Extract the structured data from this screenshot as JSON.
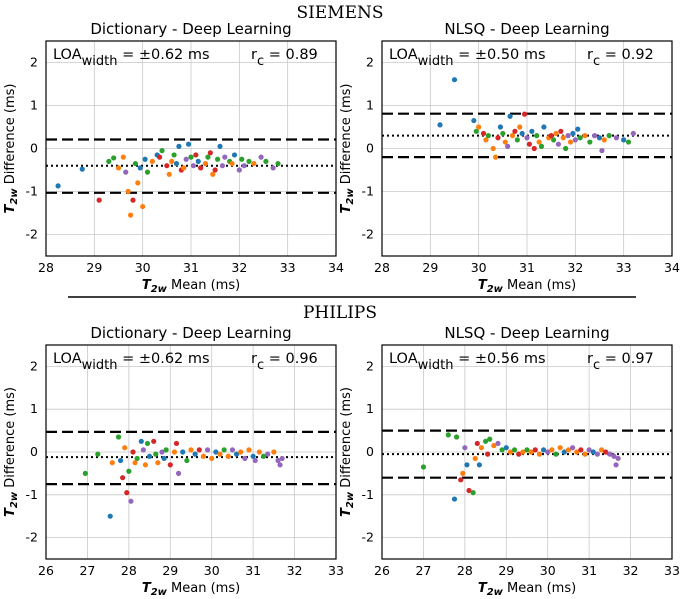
{
  "vendors": [
    "SIEMENS",
    "PHILIPS"
  ],
  "colors": {
    "palette": [
      "#1f77b4",
      "#ff7f0e",
      "#2ca02c",
      "#d62728",
      "#9467bd"
    ],
    "grid": "#c8c8c8",
    "line": "#000000"
  },
  "chart_data": [
    {
      "type": "scatter",
      "title": "Dictionary - Deep Learning",
      "xlabel": "T2w Mean (ms)",
      "ylabel": "T2w Difference (ms)",
      "xlim": [
        28,
        34
      ],
      "ylim": [
        -2.5,
        2.5
      ],
      "xticks": [
        28,
        29,
        30,
        31,
        32,
        33,
        34
      ],
      "yticks": [
        -2,
        -1,
        0,
        1,
        2
      ],
      "grid": true,
      "bias": -0.4,
      "loa_upper": 0.21,
      "loa_lower": -1.03,
      "annotation": {
        "loa_prefix": "LOA",
        "loa_sub": "width",
        "loa_value": " = ±0.62 ms",
        "rc_prefix": "r",
        "rc_sub": "c",
        "rc_value": " = 0.89"
      },
      "points": [
        [
          28.25,
          -0.87,
          0
        ],
        [
          28.75,
          -0.48,
          0
        ],
        [
          29.1,
          -1.2,
          3
        ],
        [
          29.3,
          -0.3,
          2
        ],
        [
          29.4,
          -0.22,
          2
        ],
        [
          29.5,
          -0.45,
          1
        ],
        [
          29.6,
          -0.2,
          1
        ],
        [
          29.65,
          -0.55,
          4
        ],
        [
          29.7,
          -1.0,
          1
        ],
        [
          29.75,
          -1.55,
          1
        ],
        [
          29.8,
          -1.2,
          3
        ],
        [
          29.85,
          -0.35,
          2
        ],
        [
          29.9,
          -0.8,
          1
        ],
        [
          29.95,
          -0.45,
          0
        ],
        [
          30.0,
          -1.35,
          1
        ],
        [
          30.05,
          -0.25,
          0
        ],
        [
          30.1,
          -0.55,
          2
        ],
        [
          30.2,
          -0.3,
          1
        ],
        [
          30.3,
          -0.15,
          0
        ],
        [
          30.35,
          -0.2,
          3
        ],
        [
          30.4,
          -0.05,
          2
        ],
        [
          30.5,
          -0.4,
          3
        ],
        [
          30.55,
          -0.6,
          1
        ],
        [
          30.6,
          -0.3,
          1
        ],
        [
          30.65,
          -0.15,
          2
        ],
        [
          30.7,
          -0.35,
          0
        ],
        [
          30.75,
          0.05,
          0
        ],
        [
          30.8,
          -0.5,
          3
        ],
        [
          30.85,
          -0.45,
          1
        ],
        [
          30.9,
          -0.25,
          4
        ],
        [
          30.95,
          0.1,
          0
        ],
        [
          31.0,
          -0.2,
          2
        ],
        [
          31.05,
          -0.4,
          4
        ],
        [
          31.1,
          -0.15,
          3
        ],
        [
          31.15,
          -0.3,
          0
        ],
        [
          31.2,
          -0.45,
          3
        ],
        [
          31.3,
          -0.35,
          1
        ],
        [
          31.35,
          -0.2,
          2
        ],
        [
          31.4,
          -0.1,
          3
        ],
        [
          31.45,
          -0.6,
          1
        ],
        [
          31.5,
          -0.5,
          3
        ],
        [
          31.55,
          -0.25,
          2
        ],
        [
          31.6,
          0.05,
          0
        ],
        [
          31.65,
          -0.4,
          4
        ],
        [
          31.7,
          -0.2,
          4
        ],
        [
          31.8,
          -0.3,
          2
        ],
        [
          31.85,
          -0.35,
          1
        ],
        [
          31.9,
          -0.15,
          0
        ],
        [
          32.0,
          -0.5,
          4
        ],
        [
          32.05,
          -0.25,
          2
        ],
        [
          32.1,
          -0.4,
          4
        ],
        [
          32.2,
          -0.3,
          2
        ],
        [
          32.3,
          -0.35,
          1
        ],
        [
          32.45,
          -0.2,
          4
        ],
        [
          32.55,
          -0.3,
          2
        ],
        [
          32.7,
          -0.45,
          4
        ],
        [
          32.8,
          -0.35,
          2
        ]
      ]
    },
    {
      "type": "scatter",
      "title": "NLSQ - Deep Learning",
      "xlabel": "T2w Mean (ms)",
      "ylabel": "T2w Difference (ms)",
      "xlim": [
        28,
        34
      ],
      "ylim": [
        -2.5,
        2.5
      ],
      "xticks": [
        28,
        29,
        30,
        31,
        32,
        33,
        34
      ],
      "yticks": [
        -2,
        -1,
        0,
        1,
        2
      ],
      "grid": true,
      "bias": 0.3,
      "loa_upper": 0.81,
      "loa_lower": -0.2,
      "annotation": {
        "loa_prefix": "LOA",
        "loa_sub": "width",
        "loa_value": " = ±0.50 ms",
        "rc_prefix": "r",
        "rc_sub": "c",
        "rc_value": " = 0.92"
      },
      "points": [
        [
          29.5,
          1.6,
          0
        ],
        [
          29.2,
          0.55,
          0
        ],
        [
          29.9,
          0.65,
          0
        ],
        [
          29.95,
          0.4,
          2
        ],
        [
          30.0,
          0.5,
          1
        ],
        [
          30.1,
          0.35,
          3
        ],
        [
          30.15,
          0.2,
          1
        ],
        [
          30.2,
          0.3,
          2
        ],
        [
          30.3,
          0.0,
          1
        ],
        [
          30.35,
          -0.2,
          1
        ],
        [
          30.4,
          0.25,
          3
        ],
        [
          30.45,
          0.5,
          0
        ],
        [
          30.5,
          0.35,
          2
        ],
        [
          30.55,
          0.15,
          1
        ],
        [
          30.6,
          0.05,
          4
        ],
        [
          30.65,
          0.75,
          0
        ],
        [
          30.7,
          0.3,
          1
        ],
        [
          30.75,
          0.4,
          3
        ],
        [
          30.8,
          0.2,
          2
        ],
        [
          30.85,
          0.5,
          1
        ],
        [
          30.9,
          0.35,
          0
        ],
        [
          30.95,
          0.8,
          3
        ],
        [
          31.0,
          0.25,
          4
        ],
        [
          31.05,
          0.1,
          3
        ],
        [
          31.1,
          0.4,
          0
        ],
        [
          31.15,
          0.0,
          3
        ],
        [
          31.2,
          0.3,
          2
        ],
        [
          31.25,
          0.15,
          1
        ],
        [
          31.3,
          0.05,
          2
        ],
        [
          31.35,
          0.5,
          0
        ],
        [
          31.45,
          0.25,
          1
        ],
        [
          31.5,
          0.3,
          3
        ],
        [
          31.55,
          0.2,
          2
        ],
        [
          31.6,
          0.35,
          1
        ],
        [
          31.65,
          0.1,
          4
        ],
        [
          31.7,
          0.4,
          3
        ],
        [
          31.75,
          0.25,
          1
        ],
        [
          31.8,
          0.0,
          2
        ],
        [
          31.85,
          0.3,
          4
        ],
        [
          31.9,
          0.15,
          1
        ],
        [
          31.95,
          0.35,
          0
        ],
        [
          32.0,
          0.2,
          4
        ],
        [
          32.05,
          0.45,
          0
        ],
        [
          32.1,
          0.25,
          2
        ],
        [
          32.2,
          0.3,
          1
        ],
        [
          32.3,
          0.15,
          2
        ],
        [
          32.4,
          0.3,
          4
        ],
        [
          32.5,
          0.25,
          0
        ],
        [
          32.6,
          0.2,
          1
        ],
        [
          32.55,
          -0.05,
          4
        ],
        [
          32.7,
          0.3,
          2
        ],
        [
          32.85,
          0.25,
          4
        ],
        [
          33.0,
          0.2,
          0
        ],
        [
          33.1,
          0.15,
          2
        ],
        [
          33.2,
          0.35,
          4
        ]
      ]
    },
    {
      "type": "scatter",
      "title": "Dictionary - Deep Learning",
      "xlabel": "T2w Mean (ms)",
      "ylabel": "T2w Difference (ms)",
      "xlim": [
        26,
        33
      ],
      "ylim": [
        -2.5,
        2.5
      ],
      "xticks": [
        26,
        27,
        28,
        29,
        30,
        31,
        32,
        33
      ],
      "yticks": [
        -2,
        -1,
        0,
        1,
        2
      ],
      "grid": true,
      "bias": -0.12,
      "loa_upper": 0.47,
      "loa_lower": -0.75,
      "annotation": {
        "loa_prefix": "LOA",
        "loa_sub": "width",
        "loa_value": " = ±0.62 ms",
        "rc_prefix": "r",
        "rc_sub": "c",
        "rc_value": " = 0.96"
      },
      "points": [
        [
          26.95,
          -0.5,
          2
        ],
        [
          27.25,
          -0.05,
          2
        ],
        [
          27.55,
          -1.5,
          0
        ],
        [
          27.6,
          -0.25,
          1
        ],
        [
          27.75,
          0.35,
          2
        ],
        [
          27.8,
          -0.2,
          0
        ],
        [
          27.85,
          -0.6,
          3
        ],
        [
          27.9,
          0.1,
          1
        ],
        [
          27.95,
          -0.95,
          3
        ],
        [
          28.0,
          -0.45,
          2
        ],
        [
          28.05,
          -1.15,
          4
        ],
        [
          28.1,
          0.0,
          3
        ],
        [
          28.15,
          -0.25,
          1
        ],
        [
          28.2,
          -0.15,
          2
        ],
        [
          28.3,
          0.25,
          0
        ],
        [
          28.35,
          0.05,
          4
        ],
        [
          28.4,
          -0.3,
          1
        ],
        [
          28.45,
          0.2,
          2
        ],
        [
          28.5,
          -0.1,
          0
        ],
        [
          28.6,
          0.25,
          3
        ],
        [
          28.65,
          -0.05,
          2
        ],
        [
          28.7,
          -0.25,
          1
        ],
        [
          28.8,
          0.0,
          4
        ],
        [
          28.85,
          -0.15,
          0
        ],
        [
          28.9,
          0.05,
          2
        ],
        [
          29.0,
          -0.3,
          3
        ],
        [
          29.1,
          0.0,
          1
        ],
        [
          29.15,
          0.2,
          3
        ],
        [
          29.2,
          -0.5,
          4
        ],
        [
          29.3,
          0.0,
          0
        ],
        [
          29.4,
          -0.2,
          2
        ],
        [
          29.5,
          0.05,
          1
        ],
        [
          29.6,
          -0.05,
          0
        ],
        [
          29.7,
          0.05,
          3
        ],
        [
          29.8,
          -0.1,
          1
        ],
        [
          29.9,
          0.05,
          4
        ],
        [
          30.0,
          -0.15,
          1
        ],
        [
          30.1,
          0.0,
          0
        ],
        [
          30.2,
          -0.05,
          1
        ],
        [
          30.3,
          0.05,
          2
        ],
        [
          30.4,
          -0.1,
          1
        ],
        [
          30.5,
          0.05,
          4
        ],
        [
          30.6,
          -0.05,
          0
        ],
        [
          30.7,
          0.0,
          1
        ],
        [
          30.8,
          -0.15,
          4
        ],
        [
          30.9,
          0.05,
          1
        ],
        [
          31.0,
          -0.1,
          0
        ],
        [
          31.05,
          -0.2,
          4
        ],
        [
          31.15,
          0.0,
          1
        ],
        [
          31.25,
          -0.1,
          2
        ],
        [
          31.35,
          -0.05,
          4
        ],
        [
          31.5,
          0.0,
          1
        ],
        [
          31.6,
          -0.2,
          4
        ],
        [
          31.65,
          -0.3,
          4
        ],
        [
          31.7,
          -0.15,
          4
        ]
      ]
    },
    {
      "type": "scatter",
      "title": "NLSQ - Deep Learning",
      "xlabel": "T2w Mean (ms)",
      "ylabel": "T2w Difference (ms)",
      "xlim": [
        26,
        33
      ],
      "ylim": [
        -2.5,
        2.5
      ],
      "xticks": [
        26,
        27,
        28,
        29,
        30,
        31,
        32,
        33
      ],
      "yticks": [
        -2,
        -1,
        0,
        1,
        2
      ],
      "grid": true,
      "bias": -0.05,
      "loa_upper": 0.5,
      "loa_lower": -0.6,
      "annotation": {
        "loa_prefix": "LOA",
        "loa_sub": "width",
        "loa_value": " = ±0.56 ms",
        "rc_prefix": "r",
        "rc_sub": "c",
        "rc_value": " = 0.97"
      },
      "points": [
        [
          27.0,
          -0.35,
          2
        ],
        [
          27.6,
          0.4,
          2
        ],
        [
          27.75,
          -1.1,
          0
        ],
        [
          27.8,
          0.35,
          2
        ],
        [
          27.9,
          -0.65,
          3
        ],
        [
          27.95,
          -0.5,
          1
        ],
        [
          28.0,
          0.1,
          4
        ],
        [
          28.05,
          -0.3,
          0
        ],
        [
          28.1,
          -0.9,
          3
        ],
        [
          28.2,
          -0.95,
          2
        ],
        [
          28.25,
          -0.15,
          1
        ],
        [
          28.3,
          0.2,
          3
        ],
        [
          28.35,
          -0.3,
          0
        ],
        [
          28.4,
          0.1,
          1
        ],
        [
          28.5,
          0.25,
          2
        ],
        [
          28.55,
          -0.05,
          3
        ],
        [
          28.6,
          0.3,
          2
        ],
        [
          28.7,
          0.15,
          1
        ],
        [
          28.8,
          0.2,
          4
        ],
        [
          28.9,
          0.05,
          2
        ],
        [
          29.0,
          0.1,
          0
        ],
        [
          29.1,
          0.0,
          1
        ],
        [
          29.2,
          0.05,
          2
        ],
        [
          29.3,
          -0.05,
          3
        ],
        [
          29.4,
          0.0,
          1
        ],
        [
          29.5,
          0.05,
          2
        ],
        [
          29.6,
          0.0,
          1
        ],
        [
          29.7,
          0.05,
          3
        ],
        [
          29.8,
          -0.05,
          1
        ],
        [
          29.9,
          0.05,
          0
        ],
        [
          30.0,
          0.0,
          4
        ],
        [
          30.1,
          0.05,
          1
        ],
        [
          30.2,
          -0.05,
          2
        ],
        [
          30.3,
          0.1,
          1
        ],
        [
          30.4,
          0.0,
          0
        ],
        [
          30.5,
          0.05,
          1
        ],
        [
          30.6,
          0.1,
          4
        ],
        [
          30.7,
          0.0,
          1
        ],
        [
          30.8,
          0.05,
          3
        ],
        [
          30.9,
          -0.05,
          1
        ],
        [
          31.0,
          0.05,
          4
        ],
        [
          31.1,
          0.0,
          0
        ],
        [
          31.2,
          -0.05,
          4
        ],
        [
          31.3,
          0.05,
          1
        ],
        [
          31.4,
          0.0,
          3
        ],
        [
          31.5,
          -0.05,
          4
        ],
        [
          31.6,
          -0.1,
          4
        ],
        [
          31.65,
          -0.3,
          4
        ],
        [
          31.7,
          -0.15,
          4
        ]
      ]
    }
  ]
}
